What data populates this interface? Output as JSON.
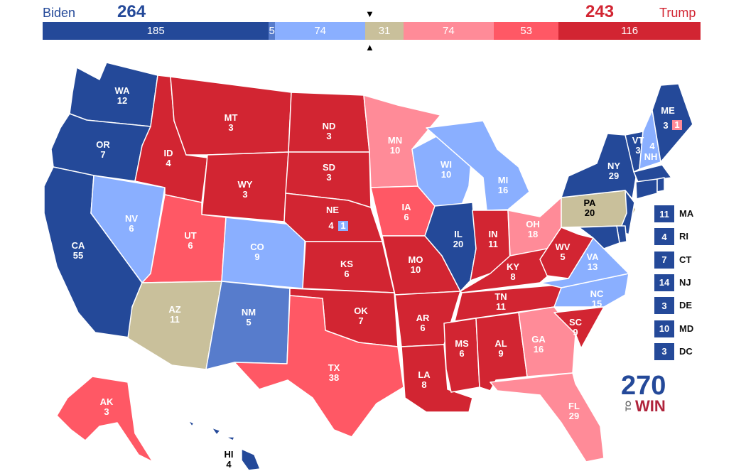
{
  "header": {
    "biden_name": "Biden",
    "biden_total": "264",
    "trump_name": "Trump",
    "trump_total": "243",
    "marker_down": "▼",
    "marker_up": "▲"
  },
  "colors": {
    "safe_dem": "#244999",
    "likely_dem": "#577ccc",
    "lean_dem": "#8aafff",
    "tossup": "#c9c09b",
    "lean_rep": "#ff8b98",
    "likely_rep": "#ff5865",
    "safe_rep": "#d22532"
  },
  "bar_segments": [
    {
      "label": "185",
      "value": 185,
      "rating": "safe_dem"
    },
    {
      "label": "5",
      "value": 5,
      "rating": "likely_dem"
    },
    {
      "label": "74",
      "value": 74,
      "rating": "lean_dem"
    },
    {
      "label": "31",
      "value": 31,
      "rating": "tossup"
    },
    {
      "label": "74",
      "value": 74,
      "rating": "lean_rep"
    },
    {
      "label": "53",
      "value": 53,
      "rating": "likely_rep"
    },
    {
      "label": "116",
      "value": 116,
      "rating": "safe_rep"
    }
  ],
  "states": {
    "WA": {
      "abbr": "WA",
      "ev": "12",
      "rating": "safe_dem"
    },
    "OR": {
      "abbr": "OR",
      "ev": "7",
      "rating": "safe_dem"
    },
    "CA": {
      "abbr": "CA",
      "ev": "55",
      "rating": "safe_dem"
    },
    "NV": {
      "abbr": "NV",
      "ev": "6",
      "rating": "lean_dem"
    },
    "ID": {
      "abbr": "ID",
      "ev": "4",
      "rating": "safe_rep"
    },
    "MT": {
      "abbr": "MT",
      "ev": "3",
      "rating": "safe_rep"
    },
    "WY": {
      "abbr": "WY",
      "ev": "3",
      "rating": "safe_rep"
    },
    "UT": {
      "abbr": "UT",
      "ev": "6",
      "rating": "likely_rep"
    },
    "AZ": {
      "abbr": "AZ",
      "ev": "11",
      "rating": "tossup"
    },
    "CO": {
      "abbr": "CO",
      "ev": "9",
      "rating": "lean_dem"
    },
    "NM": {
      "abbr": "NM",
      "ev": "5",
      "rating": "likely_dem"
    },
    "ND": {
      "abbr": "ND",
      "ev": "3",
      "rating": "safe_rep"
    },
    "SD": {
      "abbr": "SD",
      "ev": "3",
      "rating": "safe_rep"
    },
    "NE": {
      "abbr": "NE",
      "ev": "4",
      "rating": "safe_rep",
      "split": "1"
    },
    "KS": {
      "abbr": "KS",
      "ev": "6",
      "rating": "safe_rep"
    },
    "OK": {
      "abbr": "OK",
      "ev": "7",
      "rating": "safe_rep"
    },
    "TX": {
      "abbr": "TX",
      "ev": "38",
      "rating": "likely_rep"
    },
    "MN": {
      "abbr": "MN",
      "ev": "10",
      "rating": "lean_rep"
    },
    "IA": {
      "abbr": "IA",
      "ev": "6",
      "rating": "likely_rep"
    },
    "MO": {
      "abbr": "MO",
      "ev": "10",
      "rating": "safe_rep"
    },
    "AR": {
      "abbr": "AR",
      "ev": "6",
      "rating": "safe_rep"
    },
    "LA": {
      "abbr": "LA",
      "ev": "8",
      "rating": "safe_rep"
    },
    "WI": {
      "abbr": "WI",
      "ev": "10",
      "rating": "lean_dem"
    },
    "IL": {
      "abbr": "IL",
      "ev": "20",
      "rating": "safe_dem"
    },
    "MI": {
      "abbr": "MI",
      "ev": "16",
      "rating": "lean_dem"
    },
    "IN": {
      "abbr": "IN",
      "ev": "11",
      "rating": "safe_rep"
    },
    "OH": {
      "abbr": "OH",
      "ev": "18",
      "rating": "lean_rep"
    },
    "KY": {
      "abbr": "KY",
      "ev": "8",
      "rating": "safe_rep"
    },
    "TN": {
      "abbr": "TN",
      "ev": "11",
      "rating": "safe_rep"
    },
    "MS": {
      "abbr": "MS",
      "ev": "6",
      "rating": "safe_rep"
    },
    "AL": {
      "abbr": "AL",
      "ev": "9",
      "rating": "safe_rep"
    },
    "GA": {
      "abbr": "GA",
      "ev": "16",
      "rating": "lean_rep"
    },
    "FL": {
      "abbr": "FL",
      "ev": "29",
      "rating": "lean_rep"
    },
    "SC": {
      "abbr": "SC",
      "ev": "9",
      "rating": "safe_rep"
    },
    "NC": {
      "abbr": "NC",
      "ev": "15",
      "rating": "lean_dem"
    },
    "VA": {
      "abbr": "VA",
      "ev": "13",
      "rating": "lean_dem"
    },
    "WV": {
      "abbr": "WV",
      "ev": "5",
      "rating": "safe_rep"
    },
    "PA": {
      "abbr": "PA",
      "ev": "20",
      "rating": "tossup"
    },
    "NY": {
      "abbr": "NY",
      "ev": "29",
      "rating": "safe_dem"
    },
    "VT": {
      "abbr": "VT",
      "ev": "3",
      "rating": "safe_dem"
    },
    "NH": {
      "abbr": "NH",
      "ev": "4",
      "rating": "lean_dem"
    },
    "ME": {
      "abbr": "ME",
      "ev": "3",
      "rating": "safe_dem",
      "split": "1"
    },
    "AK": {
      "abbr": "AK",
      "ev": "3",
      "rating": "likely_rep"
    },
    "HI": {
      "abbr": "HI",
      "ev": "4",
      "rating": "safe_dem"
    }
  },
  "small_states": [
    {
      "abbr": "MA",
      "ev": "11",
      "rating": "safe_dem"
    },
    {
      "abbr": "RI",
      "ev": "4",
      "rating": "safe_dem"
    },
    {
      "abbr": "CT",
      "ev": "7",
      "rating": "safe_dem"
    },
    {
      "abbr": "NJ",
      "ev": "14",
      "rating": "safe_dem"
    },
    {
      "abbr": "DE",
      "ev": "3",
      "rating": "safe_dem"
    },
    {
      "abbr": "MD",
      "ev": "10",
      "rating": "safe_dem"
    },
    {
      "abbr": "DC",
      "ev": "3",
      "rating": "safe_dem"
    }
  ],
  "logo": {
    "number": "270",
    "to": "TO",
    "win": "WIN"
  }
}
